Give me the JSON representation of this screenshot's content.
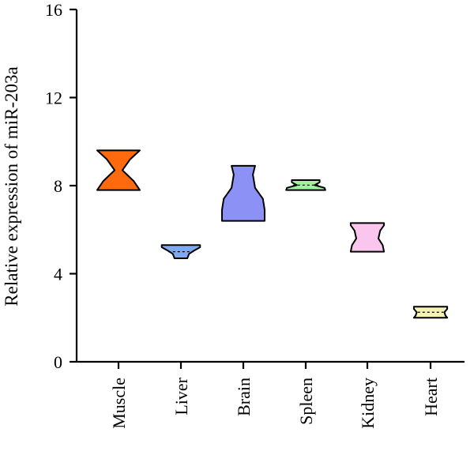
{
  "chart_data": {
    "type": "violin",
    "title": "",
    "ylabel": "Relative expression of miR-203a",
    "xlabel": "",
    "ylim": [
      0,
      16
    ],
    "yticks": [
      0,
      4,
      8,
      12,
      16
    ],
    "grid": false,
    "categories": [
      "Muscle",
      "Liver",
      "Brain",
      "Spleen",
      "Kidney",
      "Heart"
    ],
    "series": [
      {
        "category": "Muscle",
        "color": "#ff6a0f",
        "min": 7.8,
        "max": 9.6,
        "profile": [
          [
            7.8,
            1.0
          ],
          [
            8.2,
            0.72
          ],
          [
            8.7,
            0.18
          ],
          [
            9.2,
            0.55
          ],
          [
            9.6,
            1.0
          ]
        ]
      },
      {
        "category": "Liver",
        "color": "#7eaaf0",
        "min": 4.7,
        "max": 5.3,
        "profile": [
          [
            4.7,
            0.3
          ],
          [
            4.9,
            0.38
          ],
          [
            5.05,
            0.62
          ],
          [
            5.2,
            0.9
          ],
          [
            5.3,
            0.9
          ]
        ]
      },
      {
        "category": "Brain",
        "color": "#8c91f5",
        "min": 6.4,
        "max": 8.9,
        "profile": [
          [
            6.4,
            1.0
          ],
          [
            6.9,
            1.0
          ],
          [
            7.4,
            0.92
          ],
          [
            7.9,
            0.55
          ],
          [
            8.5,
            0.45
          ],
          [
            8.9,
            0.55
          ]
        ]
      },
      {
        "category": "Spleen",
        "color": "#a0f2a0",
        "min": 7.8,
        "max": 8.25,
        "profile": [
          [
            7.8,
            0.92
          ],
          [
            7.9,
            0.88
          ],
          [
            8.02,
            0.42
          ],
          [
            8.15,
            0.65
          ],
          [
            8.25,
            0.65
          ]
        ]
      },
      {
        "category": "Kidney",
        "color": "#fbc6ee",
        "min": 5.0,
        "max": 6.3,
        "profile": [
          [
            5.0,
            0.78
          ],
          [
            5.3,
            0.72
          ],
          [
            5.6,
            0.52
          ],
          [
            5.95,
            0.6
          ],
          [
            6.2,
            0.78
          ],
          [
            6.3,
            0.78
          ]
        ]
      },
      {
        "category": "Heart",
        "color": "#f6f1b4",
        "min": 2.0,
        "max": 2.5,
        "profile": [
          [
            2.0,
            0.78
          ],
          [
            2.1,
            0.7
          ],
          [
            2.25,
            0.65
          ],
          [
            2.4,
            0.78
          ],
          [
            2.5,
            0.78
          ]
        ]
      }
    ]
  }
}
